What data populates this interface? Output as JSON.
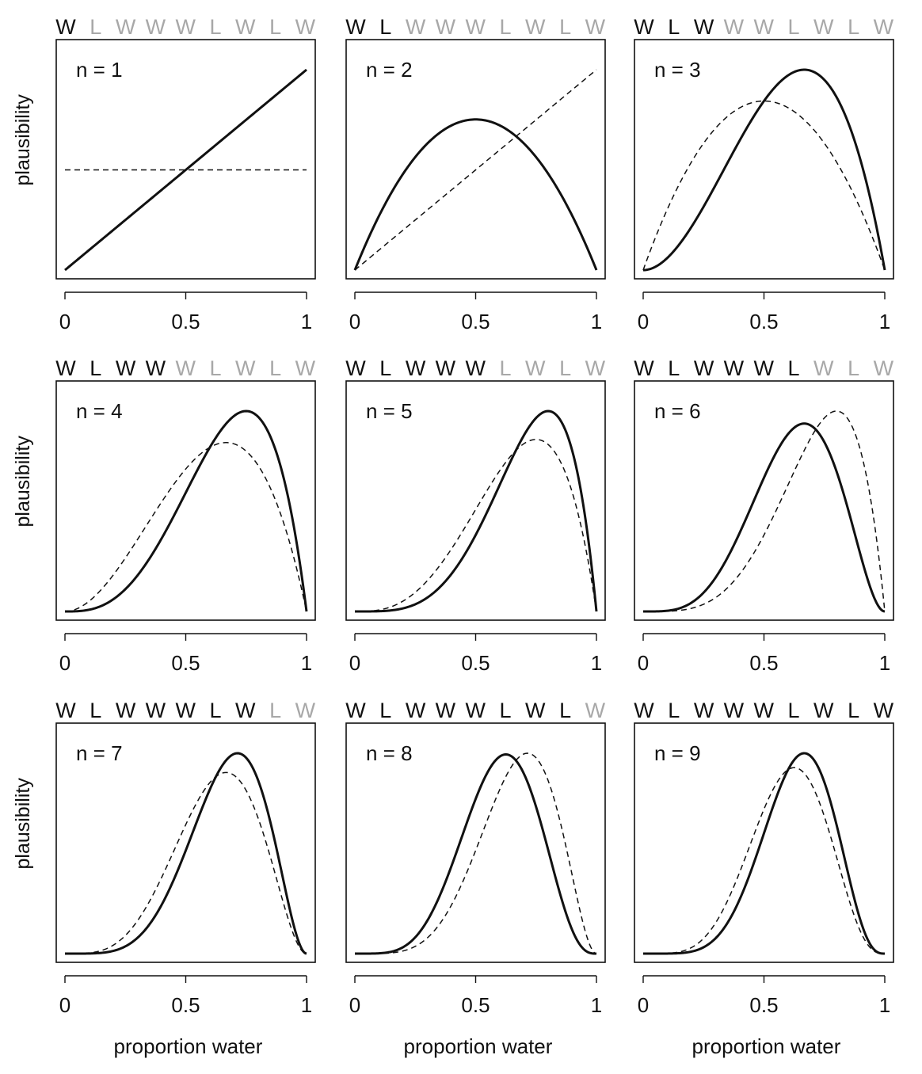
{
  "chart_data": {
    "type": "line",
    "sequence": [
      "W",
      "L",
      "W",
      "W",
      "W",
      "L",
      "W",
      "L",
      "W"
    ],
    "ylabel": "plausibility",
    "xlabel": "proportion water",
    "xlim": [
      0,
      1
    ],
    "x_ticks": [
      "0",
      "0.5",
      "1"
    ],
    "line_styles": {
      "current": "solid",
      "previous": "dashed"
    },
    "colors": {
      "observed": "#111111",
      "unobserved": "#a8a8a8",
      "line": "#111111"
    },
    "panels": [
      {
        "n": 1,
        "label": "n = 1",
        "water": 1,
        "land": 0
      },
      {
        "n": 2,
        "label": "n = 2",
        "water": 1,
        "land": 1
      },
      {
        "n": 3,
        "label": "n = 3",
        "water": 2,
        "land": 1
      },
      {
        "n": 4,
        "label": "n = 4",
        "water": 3,
        "land": 1
      },
      {
        "n": 5,
        "label": "n = 5",
        "water": 4,
        "land": 1
      },
      {
        "n": 6,
        "label": "n = 6",
        "water": 4,
        "land": 2
      },
      {
        "n": 7,
        "label": "n = 7",
        "water": 5,
        "land": 2
      },
      {
        "n": 8,
        "label": "n = 8",
        "water": 5,
        "land": 3
      },
      {
        "n": 9,
        "label": "n = 9",
        "water": 6,
        "land": 3
      }
    ]
  }
}
